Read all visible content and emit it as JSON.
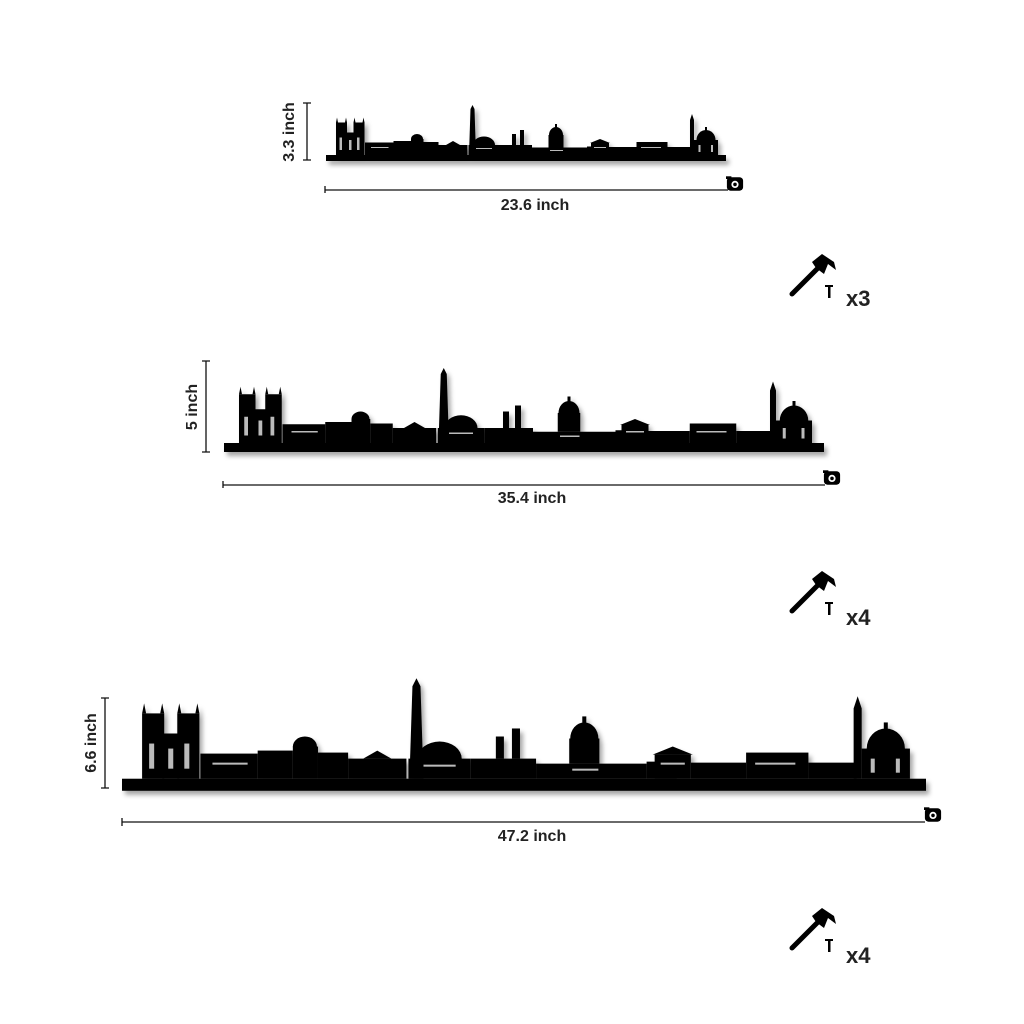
{
  "sizes": [
    {
      "height": "3.3 inch",
      "width": "23.6 inch",
      "nails": "x3"
    },
    {
      "height": "5 inch",
      "width": "35.4 inch",
      "nails": "x4"
    },
    {
      "height": "6.6 inch",
      "width": "47.2 inch",
      "nails": "x4"
    }
  ]
}
